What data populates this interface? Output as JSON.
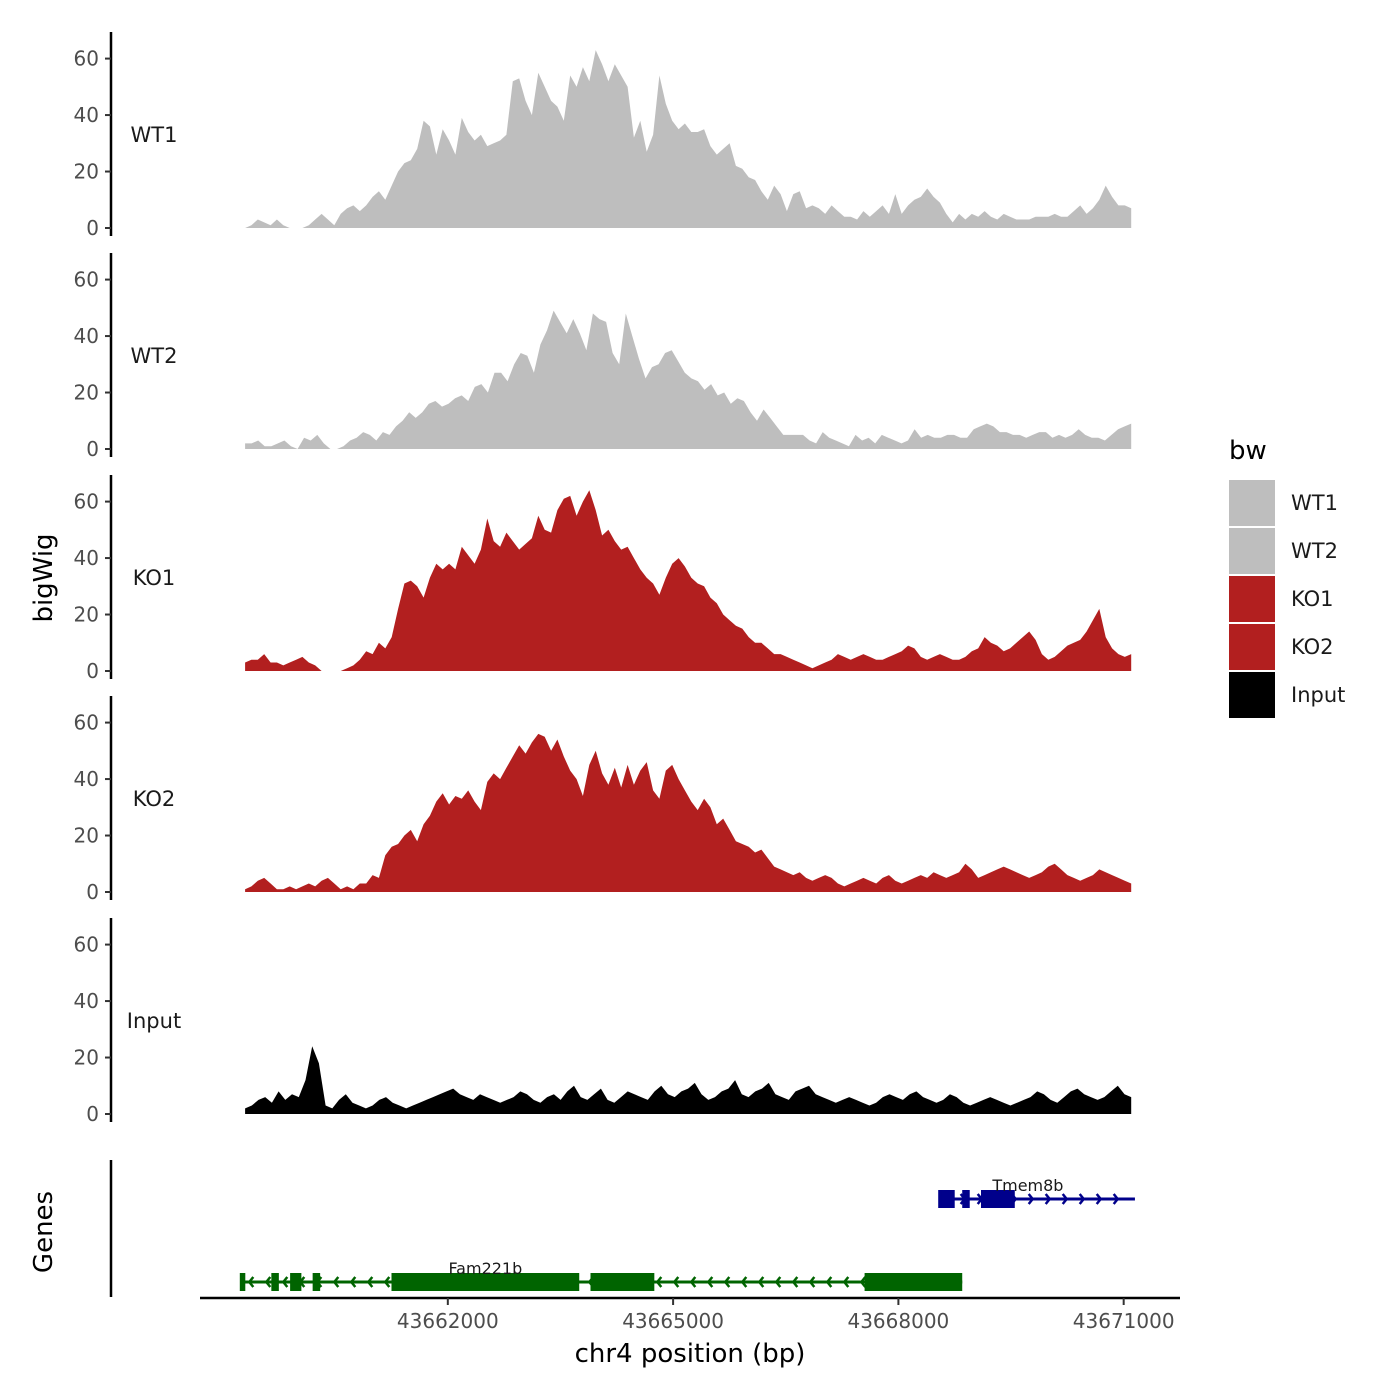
{
  "chart_data": {
    "type": "area",
    "ylabel": "bigWig",
    "xlabel": "chr4 position (bp)",
    "ylim": [
      0,
      68
    ],
    "xlim": [
      43658700,
      43671750
    ],
    "x_range_data": [
      43659300,
      43671100
    ],
    "x_ticks": [
      43662000,
      43665000,
      43668000,
      43671000
    ],
    "x_tick_labels": [
      "43662000",
      "43665000",
      "43668000",
      "43671000"
    ],
    "y_ticks": [
      0,
      20,
      40,
      60
    ],
    "y_tick_labels": [
      "0",
      "20",
      "40",
      "60"
    ],
    "legend": {
      "title": "bw",
      "position": "right",
      "entries": [
        {
          "label": "WT1",
          "color": "#bebebe"
        },
        {
          "label": "WT2",
          "color": "#bebebe"
        },
        {
          "label": "KO1",
          "color": "#b21f1f"
        },
        {
          "label": "KO2",
          "color": "#b21f1f"
        },
        {
          "label": "Input",
          "color": "#000000"
        }
      ]
    },
    "series": [
      {
        "name": "WT1",
        "color": "#bebebe",
        "values": [
          0,
          1,
          3,
          2,
          1,
          3,
          1,
          0,
          0,
          0,
          1,
          3,
          5,
          3,
          1,
          5,
          7,
          8,
          6,
          8,
          11,
          13,
          10,
          15,
          20,
          23,
          24,
          28,
          38,
          36,
          26,
          35,
          31,
          26,
          39,
          34,
          31,
          33,
          29,
          30,
          31,
          33,
          52,
          53,
          45,
          40,
          55,
          50,
          45,
          43,
          38,
          54,
          50,
          57,
          52,
          63,
          58,
          52,
          58,
          54,
          50,
          32,
          38,
          27,
          33,
          54,
          44,
          38,
          35,
          37,
          34,
          34,
          35,
          29,
          26,
          28,
          30,
          22,
          21,
          18,
          17,
          13,
          10,
          15,
          12,
          6,
          12,
          13,
          7,
          8,
          7,
          5,
          8,
          6,
          4,
          4,
          3,
          6,
          4,
          6,
          8,
          5,
          12,
          5,
          8,
          10,
          11,
          14,
          11,
          9,
          5,
          2,
          5,
          3,
          5,
          4,
          6,
          4,
          3,
          5,
          4,
          3,
          3,
          3,
          4,
          4,
          4,
          5,
          4,
          4,
          6,
          8,
          5,
          7,
          10,
          15,
          11,
          8,
          8,
          7
        ]
      },
      {
        "name": "WT2",
        "color": "#bebebe",
        "values": [
          2,
          2,
          3,
          1,
          1,
          2,
          3,
          1,
          0,
          4,
          3,
          5,
          2,
          0,
          0,
          1,
          3,
          4,
          6,
          5,
          3,
          6,
          5,
          8,
          10,
          13,
          11,
          13,
          16,
          17,
          15,
          16,
          18,
          19,
          17,
          22,
          23,
          20,
          27,
          27,
          24,
          30,
          34,
          33,
          27,
          37,
          42,
          49,
          45,
          41,
          46,
          41,
          35,
          48,
          46,
          45,
          34,
          30,
          48,
          40,
          32,
          25,
          29,
          30,
          34,
          35,
          31,
          27,
          25,
          24,
          21,
          23,
          19,
          20,
          16,
          18,
          17,
          13,
          10,
          14,
          11,
          8,
          5,
          5,
          5,
          5,
          3,
          2,
          6,
          4,
          3,
          2,
          1,
          5,
          3,
          4,
          2,
          5,
          4,
          3,
          2,
          3,
          7,
          4,
          5,
          4,
          4,
          5,
          5,
          4,
          4,
          7,
          8,
          9,
          8,
          6,
          6,
          5,
          5,
          4,
          5,
          6,
          6,
          4,
          5,
          4,
          5,
          7,
          5,
          4,
          4,
          3,
          5,
          7,
          8,
          9
        ]
      },
      {
        "name": "KO1",
        "color": "#b21f1f",
        "values": [
          3,
          4,
          4,
          6,
          3,
          3,
          2,
          3,
          4,
          5,
          3,
          2,
          0,
          0,
          0,
          0,
          1,
          2,
          4,
          7,
          6,
          10,
          8,
          12,
          22,
          31,
          32,
          30,
          26,
          33,
          38,
          36,
          38,
          36,
          44,
          41,
          38,
          43,
          54,
          46,
          44,
          49,
          46,
          43,
          45,
          47,
          55,
          50,
          49,
          57,
          61,
          62,
          55,
          60,
          64,
          57,
          48,
          50,
          46,
          43,
          44,
          40,
          36,
          33,
          31,
          27,
          33,
          38,
          40,
          37,
          33,
          31,
          30,
          26,
          24,
          20,
          18,
          16,
          15,
          12,
          10,
          10,
          8,
          6,
          6,
          5,
          4,
          3,
          2,
          1,
          2,
          3,
          4,
          6,
          5,
          4,
          5,
          6,
          5,
          4,
          4,
          5,
          6,
          7,
          9,
          8,
          5,
          4,
          5,
          6,
          5,
          4,
          4,
          5,
          7,
          8,
          12,
          10,
          9,
          7,
          8,
          10,
          12,
          14,
          11,
          6,
          4,
          5,
          7,
          9,
          10,
          11,
          14,
          18,
          22,
          12,
          8,
          6,
          5,
          6
        ]
      },
      {
        "name": "KO2",
        "color": "#b21f1f",
        "values": [
          1,
          2,
          4,
          5,
          3,
          1,
          1,
          2,
          1,
          2,
          3,
          2,
          4,
          5,
          3,
          1,
          2,
          1,
          3,
          3,
          6,
          5,
          13,
          16,
          17,
          20,
          22,
          18,
          24,
          27,
          32,
          35,
          31,
          34,
          33,
          36,
          32,
          29,
          39,
          42,
          40,
          44,
          48,
          52,
          49,
          53,
          56,
          55,
          50,
          54,
          48,
          43,
          40,
          34,
          45,
          50,
          42,
          38,
          44,
          37,
          45,
          38,
          43,
          46,
          36,
          33,
          43,
          45,
          40,
          36,
          32,
          29,
          33,
          30,
          24,
          26,
          22,
          18,
          17,
          16,
          14,
          15,
          12,
          9,
          8,
          7,
          6,
          7,
          5,
          4,
          5,
          6,
          5,
          3,
          2,
          3,
          4,
          5,
          4,
          3,
          5,
          6,
          4,
          3,
          4,
          5,
          6,
          5,
          7,
          6,
          5,
          6,
          7,
          10,
          8,
          5,
          6,
          7,
          8,
          9,
          8,
          7,
          6,
          5,
          6,
          7,
          9,
          10,
          8,
          6,
          5,
          4,
          5,
          6,
          8,
          7,
          6,
          5,
          4,
          3
        ]
      },
      {
        "name": "Input",
        "color": "#000000",
        "values": [
          2,
          3,
          5,
          6,
          4,
          8,
          5,
          7,
          6,
          12,
          24,
          18,
          3,
          2,
          5,
          7,
          4,
          3,
          2,
          3,
          5,
          6,
          4,
          3,
          2,
          3,
          4,
          5,
          6,
          7,
          8,
          9,
          7,
          6,
          5,
          7,
          6,
          5,
          4,
          5,
          6,
          8,
          7,
          5,
          4,
          6,
          7,
          5,
          8,
          10,
          6,
          5,
          7,
          9,
          5,
          4,
          6,
          8,
          7,
          6,
          5,
          8,
          10,
          7,
          6,
          8,
          9,
          11,
          7,
          5,
          6,
          8,
          9,
          12,
          7,
          6,
          8,
          9,
          11,
          7,
          6,
          5,
          8,
          9,
          10,
          7,
          6,
          5,
          4,
          5,
          6,
          5,
          4,
          3,
          4,
          6,
          7,
          6,
          5,
          7,
          8,
          6,
          5,
          4,
          5,
          7,
          6,
          4,
          3,
          4,
          5,
          6,
          5,
          4,
          3,
          4,
          5,
          6,
          8,
          7,
          5,
          4,
          6,
          8,
          9,
          7,
          6,
          5,
          6,
          8,
          10,
          7,
          6
        ]
      }
    ],
    "genes_track": {
      "label": "Genes",
      "genes": [
        {
          "name": "Tmem8b",
          "strand": "+",
          "color": "#00008b",
          "start": 43668550,
          "end": 43671150,
          "exons": [
            [
              43668550,
              43668750
            ],
            [
              43668850,
              43668950
            ],
            [
              43669100,
              43669550
            ]
          ]
        },
        {
          "name": "Fam221b",
          "strand": "-",
          "color": "#006400",
          "start": 43659250,
          "end": 43668850,
          "exons": [
            [
              43659250,
              43659300
            ],
            [
              43659650,
              43659750
            ],
            [
              43659900,
              43660050
            ],
            [
              43660200,
              43660300
            ],
            [
              43661250,
              43663750
            ],
            [
              43663900,
              43664750
            ],
            [
              43667550,
              43668850
            ]
          ]
        }
      ]
    }
  }
}
